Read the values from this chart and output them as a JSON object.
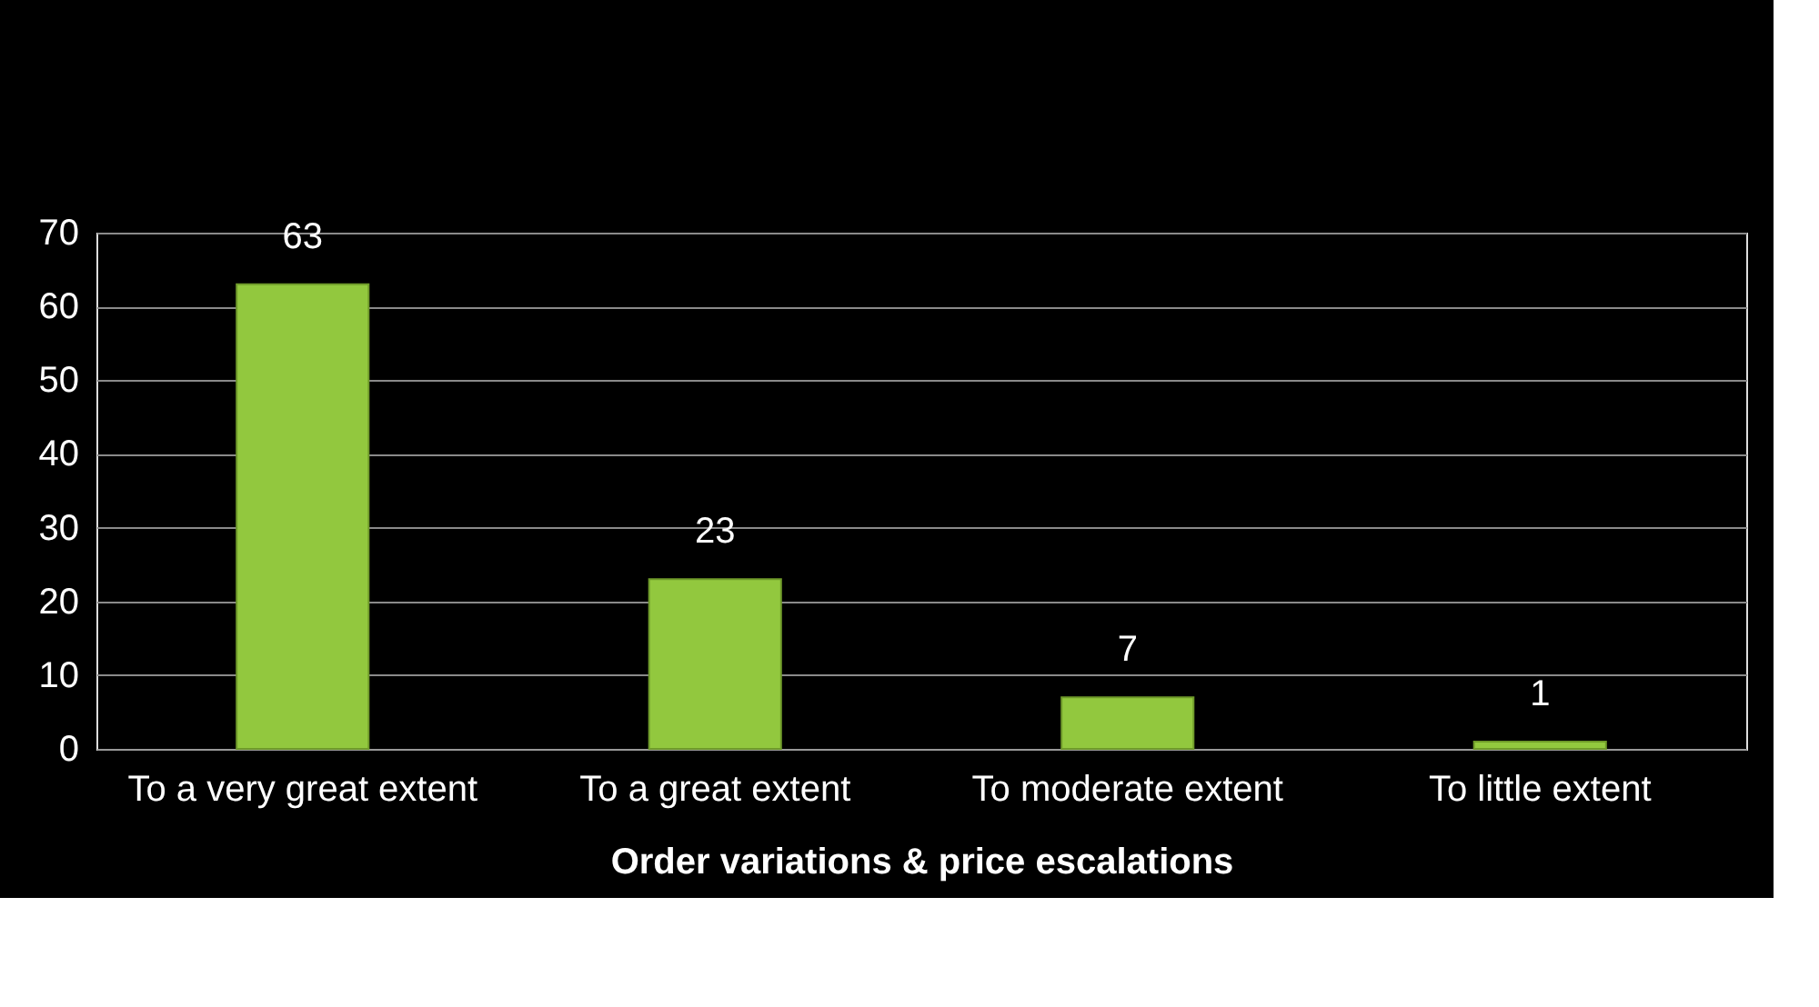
{
  "chart_data": {
    "type": "bar",
    "xlabel": "Order variations & price escalations",
    "categories": [
      "To a very great extent",
      "To a great extent",
      "To moderate extent",
      "To little extent"
    ],
    "values": [
      63,
      23,
      7,
      1
    ],
    "color": "#92c83e",
    "ylim": [
      0,
      70
    ],
    "yticks": [
      0,
      10,
      20,
      30,
      40,
      50,
      60,
      70
    ],
    "grid": "y",
    "data_labels": true
  }
}
